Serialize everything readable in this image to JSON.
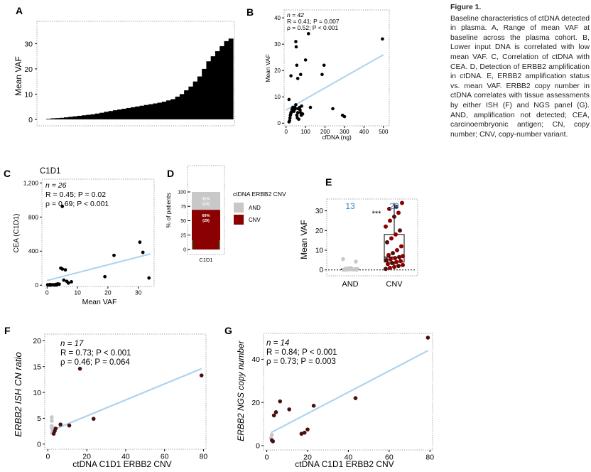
{
  "figure": {
    "caption_title": "Figure 1.",
    "caption_text": "Baseline characteristics of ctDNA detected in plasma. A, Range of mean VAF at baseline across the plasma cohort. B, Lower input DNA is correlated with low mean VAF. C, Correlation of ctDNA with CEA. D, Detection of ERBB2 amplification in ctDNA. E, ERBB2 amplification status vs. mean VAF. ERBB2 copy number in ctDNA correlates with tissue assessments by either ISH (F) and NGS panel (G). AND, amplification not detected; CEA, carcinoembryonic antigen; CN, copy number; CNV, copy-number variant."
  },
  "colors": {
    "black": "#000000",
    "dark_red": "#8b0000",
    "maroon": "#4a1010",
    "light_gray": "#c8c8c8",
    "reg_line": "#aed3ee",
    "count_blue": "#3a86c8"
  },
  "chart_data": [
    {
      "panel": "A",
      "type": "bar",
      "ylabel": "Mean VAF",
      "yticks": [
        "0",
        "10",
        "20",
        "30"
      ],
      "ylim": [
        -2,
        38
      ],
      "values": [
        0.2,
        0.4,
        0.5,
        0.6,
        0.8,
        1.0,
        1.2,
        1.4,
        1.6,
        1.8,
        2.0,
        2.3,
        2.6,
        3.0,
        3.3,
        3.6,
        3.9,
        4.2,
        4.5,
        4.8,
        5.1,
        5.4,
        5.7,
        6.0,
        6.3,
        6.6,
        7.0,
        7.5,
        8.0,
        9.0,
        10.0,
        11.5,
        13.0,
        15.0,
        17.0,
        20.0,
        23.0,
        25.0,
        27.0,
        29.0,
        31.0,
        32.0
      ]
    },
    {
      "panel": "B",
      "type": "scatter",
      "xlabel": "cfDNA (ng)",
      "ylabel": "Mean VAF",
      "xticks": [
        "0",
        "100",
        "200",
        "300",
        "400",
        "500"
      ],
      "yticks": [
        "0",
        "10",
        "20",
        "30",
        "40"
      ],
      "xlim": [
        -10,
        530
      ],
      "ylim": [
        -1,
        43
      ],
      "stats": {
        "n": "n = 42",
        "R": "R = 0.41; P = 0.007",
        "rho": "ρ = 0.52; P < 0.001"
      },
      "fit": {
        "x": [
          0,
          500
        ],
        "y": [
          5,
          26
        ]
      },
      "points": [
        [
          15,
          0.5
        ],
        [
          18,
          1
        ],
        [
          20,
          2
        ],
        [
          22,
          3
        ],
        [
          24,
          3.5
        ],
        [
          25,
          4
        ],
        [
          28,
          4.2
        ],
        [
          30,
          5
        ],
        [
          32,
          5.5
        ],
        [
          35,
          6
        ],
        [
          40,
          4.5
        ],
        [
          42,
          5
        ],
        [
          45,
          6
        ],
        [
          48,
          5.5
        ],
        [
          50,
          7
        ],
        [
          55,
          3
        ],
        [
          58,
          2
        ],
        [
          60,
          4
        ],
        [
          62,
          5.5
        ],
        [
          65,
          1.5
        ],
        [
          70,
          6
        ],
        [
          72,
          5
        ],
        [
          75,
          4
        ],
        [
          78,
          3
        ],
        [
          80,
          6.5
        ],
        [
          50,
          31
        ],
        [
          52,
          29
        ],
        [
          55,
          22
        ],
        [
          60,
          17
        ],
        [
          75,
          18.5
        ],
        [
          85,
          3.5
        ],
        [
          100,
          24
        ],
        [
          115,
          34
        ],
        [
          125,
          6
        ],
        [
          185,
          18.5
        ],
        [
          195,
          22
        ],
        [
          240,
          5.5
        ],
        [
          290,
          3
        ],
        [
          300,
          2.5
        ],
        [
          495,
          32
        ],
        [
          15,
          9
        ],
        [
          25,
          18
        ]
      ]
    },
    {
      "panel": "C",
      "type": "scatter",
      "subtitle": "C1D1",
      "xlabel": "Mean VAF",
      "ylabel": "CEA (C1D1)",
      "xticks": [
        "0",
        "10",
        "20",
        "30"
      ],
      "yticks": [
        "0",
        "400",
        "800",
        "1,200"
      ],
      "xlim": [
        -1.7,
        35.2
      ],
      "ylim": [
        -15,
        1245
      ],
      "stats": {
        "n": "n = 26",
        "R": "R = 0.45; P = 0.02",
        "rho": "ρ = 0.69; P < 0.001"
      },
      "fit": {
        "x": [
          0,
          34
        ],
        "y": [
          55,
          368
        ]
      },
      "points": [
        [
          0.2,
          5
        ],
        [
          0.5,
          3
        ],
        [
          1,
          8
        ],
        [
          1.5,
          4
        ],
        [
          2,
          6
        ],
        [
          2.5,
          2
        ],
        [
          3,
          10
        ],
        [
          3.5,
          15
        ],
        [
          4,
          12
        ],
        [
          4.5,
          200
        ],
        [
          5,
          190
        ],
        [
          5,
          925
        ],
        [
          5.5,
          60
        ],
        [
          6,
          180
        ],
        [
          6.5,
          45
        ],
        [
          7,
          25
        ],
        [
          8,
          40
        ],
        [
          19,
          100
        ],
        [
          22,
          350
        ],
        [
          30.5,
          505
        ],
        [
          31.5,
          385
        ],
        [
          33.5,
          85
        ],
        [
          0.8,
          1
        ],
        [
          1.2,
          2
        ],
        [
          2.8,
          7
        ],
        [
          3.2,
          3
        ]
      ]
    },
    {
      "panel": "D",
      "type": "bar",
      "subtitle": "C1D1",
      "ylabel": "% of patients",
      "yticks": [
        "0",
        "25",
        "50",
        "75",
        "100"
      ],
      "legend_title": "ctDNA ERBB2 CNV",
      "categories": [
        "C1D1"
      ],
      "series": [
        {
          "name": "CNV",
          "values": [
            69
          ],
          "label": "69%",
          "count": "(29)"
        },
        {
          "name": "AND",
          "values": [
            31
          ],
          "label": "31%",
          "count": "(13)"
        }
      ]
    },
    {
      "panel": "E",
      "type": "scatter",
      "ylabel": "Mean VAF",
      "categories": [
        "AND",
        "CNV"
      ],
      "counts": [
        "13",
        "29"
      ],
      "significance": "***",
      "yticks": [
        "0",
        "10",
        "20",
        "30"
      ],
      "ylim": [
        -3,
        36
      ],
      "and_points": [
        0,
        0.1,
        0.2,
        0.3,
        0.4,
        0.5,
        0.6,
        0.8,
        1.0,
        0.2,
        0.1,
        5.5,
        4.2
      ],
      "cnv_points": [
        0.5,
        1.0,
        1.5,
        2.0,
        2.5,
        3.0,
        3.5,
        4.0,
        4.5,
        5.0,
        5.5,
        6.0,
        6.5,
        7.0,
        7.5,
        8.5,
        10,
        12,
        14,
        16,
        18,
        20,
        22,
        25,
        27,
        29,
        31,
        32,
        34
      ],
      "box": {
        "q1": 4,
        "median": 6.5,
        "q3": 18,
        "low": 0.5,
        "high": 34
      }
    },
    {
      "panel": "F",
      "type": "scatter",
      "xlabel": "ctDNA C1D1 ERBB2 CNV",
      "ylabel": "ERBB2 ISH CN ratio",
      "xticks": [
        "0",
        "20",
        "40",
        "60",
        "80"
      ],
      "yticks": [
        "0",
        "5",
        "10",
        "15",
        "20"
      ],
      "xlim": [
        -1.6,
        81.3
      ],
      "ylim": [
        -1,
        21.3
      ],
      "stats": {
        "n": "n = 17",
        "R": "R = 0.73; P < 0.001",
        "rho": "ρ = 0.46; P = 0.064"
      },
      "fit": {
        "x": [
          3,
          79
        ],
        "y": [
          2.8,
          14.6
        ]
      },
      "gray_points": [
        [
          2,
          5.2
        ],
        [
          2,
          4.5
        ],
        [
          2,
          3.5
        ],
        [
          2,
          3.2
        ],
        [
          2.5,
          2.7
        ],
        [
          2.2,
          2.2
        ],
        [
          2.8,
          2.5
        ],
        [
          3,
          3
        ],
        [
          2.2,
          2.9
        ]
      ],
      "red_points": [
        [
          3,
          2.0
        ],
        [
          6.5,
          3.8
        ],
        [
          11,
          3.6
        ],
        [
          16.5,
          14.6
        ],
        [
          23.5,
          4.9
        ],
        [
          79,
          13.3
        ],
        [
          3.5,
          2.5
        ],
        [
          4,
          3
        ]
      ]
    },
    {
      "panel": "G",
      "type": "scatter",
      "xlabel": "ctDNA C1D1 ERBB2 CNV",
      "ylabel": "ERBB2 NGS copy number",
      "xticks": [
        "0",
        "20",
        "40",
        "60",
        "80"
      ],
      "yticks": [
        "0",
        "20",
        "40"
      ],
      "xlim": [
        -1.6,
        81.3
      ],
      "ylim": [
        -2,
        52
      ],
      "stats": {
        "n": "n = 14",
        "R": "R = 0.84; P < 0.001",
        "rho": "ρ = 0.73; P = 0.003"
      },
      "fit": {
        "x": [
          2,
          79
        ],
        "y": [
          6,
          44
        ]
      },
      "gray_points": [
        [
          2,
          3.5
        ],
        [
          2.5,
          5
        ]
      ],
      "red_points": [
        [
          3,
          2
        ],
        [
          3.5,
          14
        ],
        [
          4.5,
          15.5
        ],
        [
          6.5,
          20.5
        ],
        [
          11,
          16.8
        ],
        [
          17,
          5.5
        ],
        [
          18.5,
          6
        ],
        [
          20,
          7.5
        ],
        [
          23,
          18.5
        ],
        [
          43.5,
          22
        ],
        [
          79,
          50
        ],
        [
          2.5,
          2.5
        ]
      ]
    }
  ]
}
